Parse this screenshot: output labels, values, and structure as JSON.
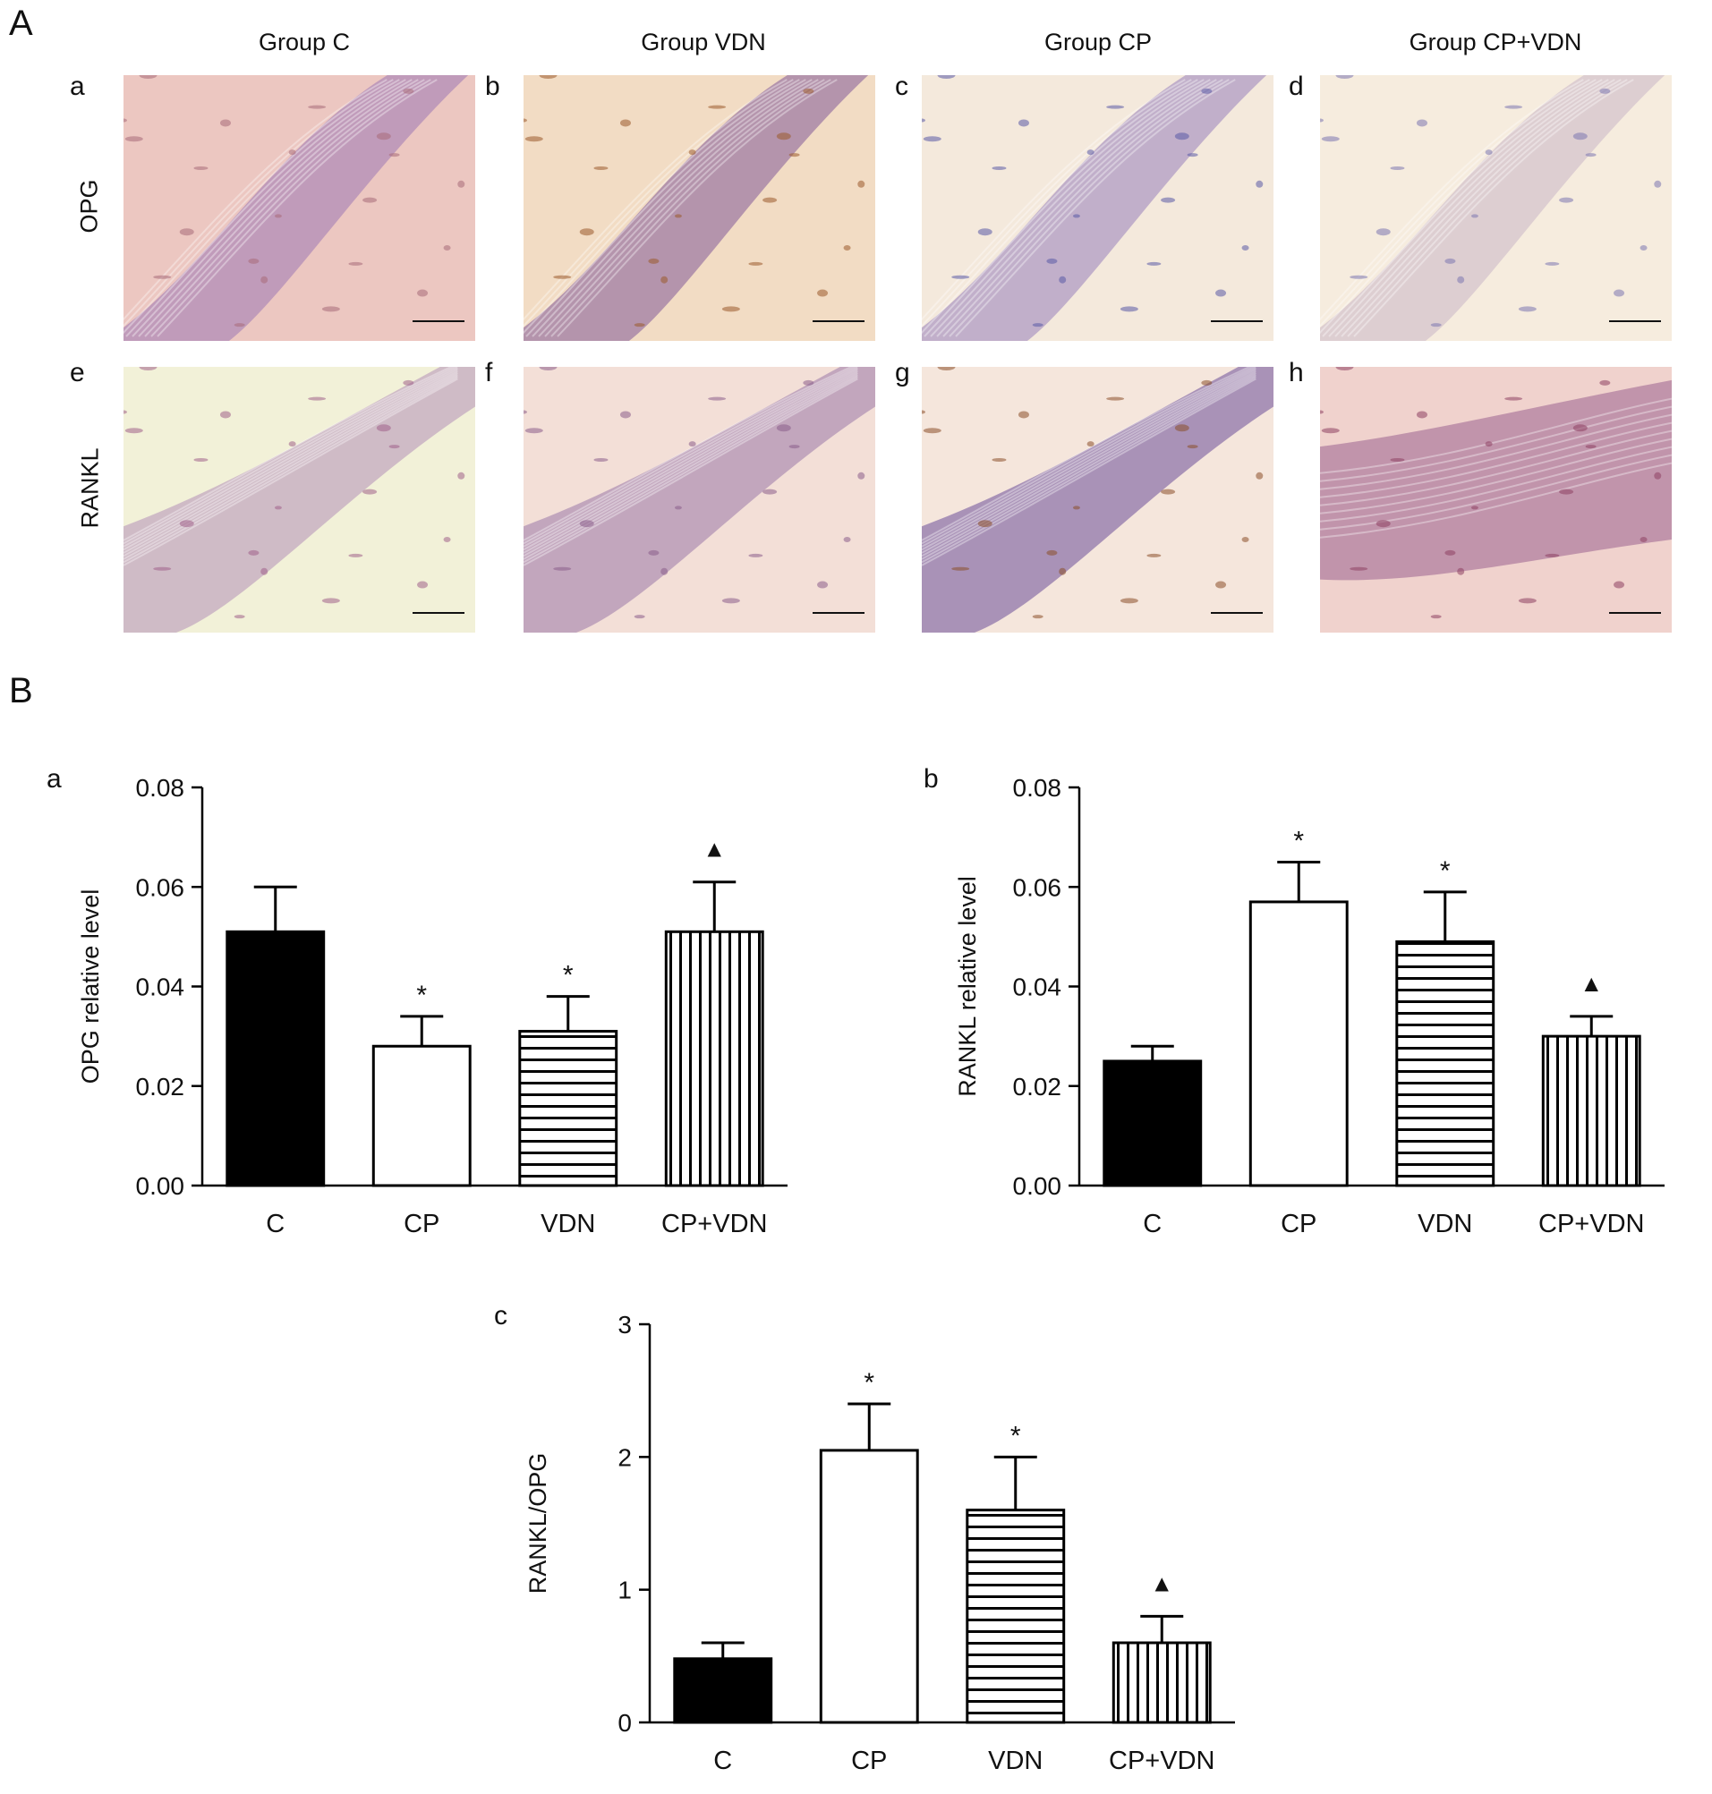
{
  "panel_A": {
    "letter": "A",
    "column_titles": [
      "Group C",
      "Group VDN",
      "Group CP",
      "Group CP+VDN"
    ],
    "row_labels": [
      "OPG",
      "RANKL"
    ],
    "images": [
      {
        "letter": "a",
        "tone": "#ecc7c1",
        "tissue": "#b993b8",
        "stain": "#a86a78"
      },
      {
        "letter": "b",
        "tone": "#f2dcc4",
        "tissue": "#a987a8",
        "stain": "#9b5a2c"
      },
      {
        "letter": "c",
        "tone": "#f4e9dc",
        "tissue": "#b7a4c7",
        "stain": "#5a59a5"
      },
      {
        "letter": "d",
        "tone": "#f6ecde",
        "tissue": "#d8c9cf",
        "stain": "#7b76b0"
      },
      {
        "letter": "e",
        "tone": "#f2f1d8",
        "tissue": "#c9b1c3",
        "stain": "#a0608a"
      },
      {
        "letter": "f",
        "tone": "#f3dfd7",
        "tissue": "#b99cb8",
        "stain": "#8b5d8b"
      },
      {
        "letter": "g",
        "tone": "#f5e6dc",
        "tissue": "#9b83b0",
        "stain": "#8a4e2a"
      },
      {
        "letter": "h",
        "tone": "#f0d2cd",
        "tissue": "#b98aa5",
        "stain": "#8e3f63"
      }
    ]
  },
  "panel_B": {
    "letter": "B"
  },
  "chart_data": [
    {
      "type": "bar",
      "letter": "a",
      "categories": [
        "C",
        "CP",
        "VDN",
        "CP+VDN"
      ],
      "values": [
        0.051,
        0.028,
        0.031,
        0.051
      ],
      "errors": [
        0.009,
        0.006,
        0.007,
        0.01
      ],
      "markers": [
        "",
        "*",
        "*",
        "▲"
      ],
      "patterns": [
        "solid",
        "open",
        "hstripe",
        "vstripe"
      ],
      "ylabel": "OPG relative level",
      "ylim": [
        0,
        0.08
      ],
      "yticks": [
        "0.00",
        "0.02",
        "0.04",
        "0.06",
        "0.08"
      ],
      "grid": false
    },
    {
      "type": "bar",
      "letter": "b",
      "categories": [
        "C",
        "CP",
        "VDN",
        "CP+VDN"
      ],
      "values": [
        0.025,
        0.057,
        0.049,
        0.03
      ],
      "errors": [
        0.003,
        0.008,
        0.01,
        0.004
      ],
      "markers": [
        "",
        "*",
        "*",
        "▲"
      ],
      "patterns": [
        "solid",
        "open",
        "hstripe",
        "vstripe"
      ],
      "ylabel": "RANKL relative level",
      "ylim": [
        0,
        0.08
      ],
      "yticks": [
        "0.00",
        "0.02",
        "0.04",
        "0.06",
        "0.08"
      ],
      "grid": false
    },
    {
      "type": "bar",
      "letter": "c",
      "categories": [
        "C",
        "CP",
        "VDN",
        "CP+VDN"
      ],
      "values": [
        0.48,
        2.05,
        1.6,
        0.6
      ],
      "errors": [
        0.12,
        0.35,
        0.4,
        0.2
      ],
      "markers": [
        "",
        "*",
        "*",
        "▲"
      ],
      "patterns": [
        "solid",
        "open",
        "hstripe",
        "vstripe"
      ],
      "ylabel": "RANKL/OPG",
      "ylim": [
        0,
        3
      ],
      "yticks": [
        "0",
        "1",
        "2",
        "3"
      ],
      "grid": false
    }
  ]
}
